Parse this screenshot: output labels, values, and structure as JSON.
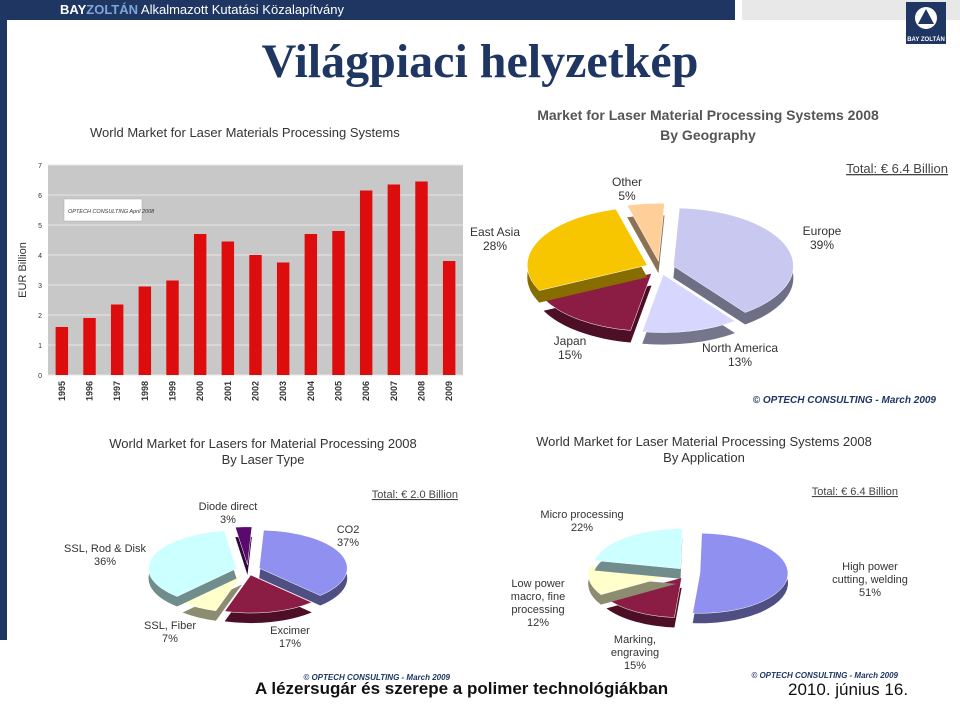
{
  "header": {
    "brand_bold": "BAYZOLTÁN",
    "brand_rest": "Alkalmazott Kutatási Közalapítvány",
    "logo_text": "BAY ZOLTÁN"
  },
  "slide": {
    "title": "Világpiaci helyzetkép",
    "footer_text": "A lézersugár és szerepe a polimer technológiákban",
    "footer_date": "2010. június 16."
  },
  "colors": {
    "navy": "#1f3663",
    "bar_red": "#dd0d0d",
    "plot_bg": "#c8c8c8"
  },
  "chart_data": [
    {
      "type": "bar",
      "title": "World Market for Laser Materials Processing Systems",
      "ylabel": "EUR Billion",
      "ylim": [
        0,
        7
      ],
      "yticks": [
        0,
        1,
        2,
        3,
        4,
        5,
        6,
        7
      ],
      "grid": true,
      "annotation": "OPTECH CONSULTING April 2008",
      "categories": [
        "1995",
        "1996",
        "1997",
        "1998",
        "1999",
        "2000",
        "2001",
        "2002",
        "2003",
        "2004",
        "2005",
        "2006",
        "2007",
        "2008",
        "2009"
      ],
      "values": [
        1.6,
        1.9,
        2.35,
        2.95,
        3.15,
        4.7,
        4.45,
        4.0,
        3.75,
        4.7,
        4.8,
        6.15,
        6.35,
        6.45,
        3.8
      ]
    },
    {
      "type": "pie",
      "title": "Market for Laser Material Processing Systems 2008",
      "subtitle": "By Geography",
      "total": "Total: € 6.4 Billion",
      "source": "© OPTECH CONSULTING - March 2009",
      "slices": [
        {
          "label": "Europe",
          "pct": "39%",
          "value": 39,
          "color": "#c8c8f0"
        },
        {
          "label": "North America",
          "pct": "13%",
          "value": 13,
          "color": "#d6d6ff"
        },
        {
          "label": "Japan",
          "pct": "15%",
          "value": 15,
          "color": "#8b1d45"
        },
        {
          "label": "East Asia",
          "pct": "28%",
          "value": 28,
          "color": "#f7c600"
        },
        {
          "label": "Other",
          "pct": "5%",
          "value": 5,
          "color": "#ffcf99"
        }
      ]
    },
    {
      "type": "pie",
      "title": "World Market for Lasers for Material Processing 2008",
      "subtitle": "By Laser Type",
      "total": "Total: € 2.0 Billion",
      "source": "© OPTECH CONSULTING - March 2009",
      "slices": [
        {
          "label": "CO2",
          "pct": "37%",
          "value": 37,
          "color": "#9090f0"
        },
        {
          "label": "Excimer",
          "pct": "17%",
          "value": 17,
          "color": "#8b1d45"
        },
        {
          "label": "SSL, Fiber",
          "pct": "7%",
          "value": 7,
          "color": "#ffffcc"
        },
        {
          "label": "SSL, Rod & Disk",
          "pct": "36%",
          "value": 36,
          "color": "#ccffff"
        },
        {
          "label": "Diode direct",
          "pct": "3%",
          "value": 3,
          "color": "#5a0a6e"
        }
      ]
    },
    {
      "type": "pie",
      "title": "World Market for Laser Material Processing Systems 2008",
      "subtitle": "By Application",
      "total": "Total: € 6.4 Billion",
      "source": "© OPTECH CONSULTING - March 2009",
      "slices": [
        {
          "label": "High power cutting, welding",
          "pct": "51%",
          "value": 51,
          "color": "#9090f0"
        },
        {
          "label": "Marking, engraving",
          "pct": "15%",
          "value": 15,
          "color": "#8b1d45"
        },
        {
          "label": "Low power macro, fine processing",
          "pct": "12%",
          "value": 12,
          "color": "#ffffcc"
        },
        {
          "label": "Micro processing",
          "pct": "22%",
          "value": 22,
          "color": "#ccffff"
        }
      ]
    }
  ]
}
